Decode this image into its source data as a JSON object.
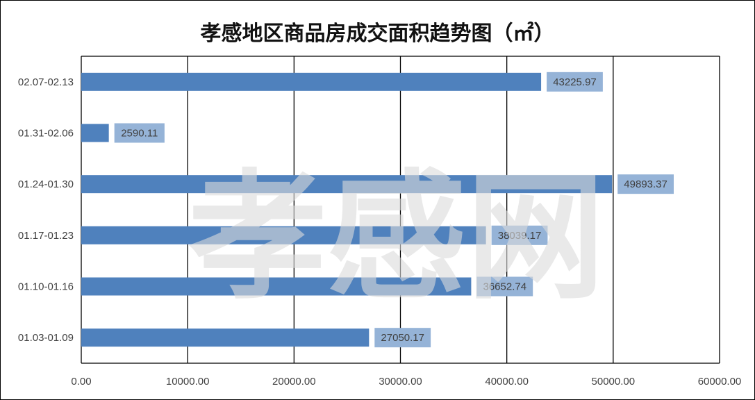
{
  "chart_data": {
    "type": "bar",
    "orientation": "horizontal",
    "title": "孝感地区商品房成交面积趋势图（㎡）",
    "categories": [
      "01.03-01.09",
      "01.10-01.16",
      "01.17-01.23",
      "01.24-01.30",
      "01.31-02.06",
      "02.07-02.13"
    ],
    "values": [
      27050.17,
      36652.74,
      38039.17,
      49893.37,
      2590.11,
      43225.97
    ],
    "value_labels": [
      "27050.17",
      "36652.74",
      "38039.17",
      "49893.37",
      "2590.11",
      "43225.97"
    ],
    "xlim": [
      0,
      60000
    ],
    "xticks": [
      "0.00",
      "10000.00",
      "20000.00",
      "30000.00",
      "40000.00",
      "50000.00",
      "60000.00"
    ],
    "grid": "vertical",
    "legend": "none",
    "watermark": "孝感网",
    "colors": {
      "bar": "#4f81bd",
      "label_bg": "#95b3d7",
      "grid": "#000000",
      "text": "#404040"
    }
  }
}
